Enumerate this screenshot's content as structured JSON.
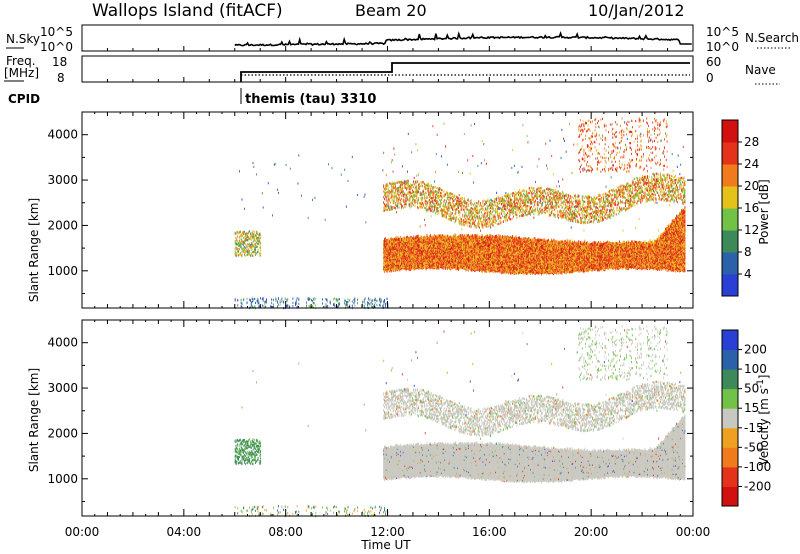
{
  "header": {
    "station": "Wallops Island (fitACF)",
    "beam": "Beam 20",
    "date": "10/Jan/2012"
  },
  "panels": {
    "nsky": {
      "left_label": "N.Sky",
      "left_ticks": [
        "10^5",
        "10^0"
      ],
      "right_ticks": [
        "10^5",
        "10^0"
      ],
      "right_label": "N.Search"
    },
    "freq": {
      "left_label": "Freq.",
      "left_unit": "[MHz]",
      "left_ticks": [
        "18",
        "8"
      ],
      "right_ticks": [
        "60",
        "0"
      ],
      "right_label": "Nave"
    },
    "cpid": {
      "label": "CPID",
      "program": "themis (tau) 3310"
    }
  },
  "colors": {
    "power_scale": [
      "#2a3fd6",
      "#2a61a8",
      "#3c8a5a",
      "#72c247",
      "#e5c21a",
      "#f07b1c",
      "#e5321a",
      "#d21010"
    ],
    "velocity_scale": [
      "#2a3fd6",
      "#2a61a8",
      "#3c8a5a",
      "#72c247",
      "#c8c8c0",
      "#f0a020",
      "#f07b1c",
      "#e5321a",
      "#d21010"
    ],
    "ground_scatter": "#c8c8c0"
  },
  "chart_data": [
    {
      "type": "heatmap",
      "title": "",
      "xlabel": "Time UT",
      "ylabel": "Slant Range [km]",
      "xlim": [
        "00:00",
        "24:00"
      ],
      "ylim": [
        180,
        4500
      ],
      "x_ticks": [
        "00:00",
        "04:00",
        "08:00",
        "12:00",
        "16:00",
        "20:00",
        "00:00"
      ],
      "y_ticks": [
        "1000",
        "2000",
        "3000",
        "4000"
      ],
      "colorbar": {
        "label": "Power [dB]",
        "range": [
          0,
          32
        ],
        "ticks": [
          "4",
          "8",
          "12",
          "16",
          "20",
          "24",
          "28"
        ]
      },
      "features": [
        {
          "desc": "echo patch",
          "t": [
            6.0,
            7.0
          ],
          "range_km": [
            1350,
            1900
          ],
          "dB": 18
        },
        {
          "desc": "sparse echoes",
          "t": [
            6.0,
            12.0
          ],
          "range_km": [
            180,
            400
          ],
          "dB": 6
        },
        {
          "desc": "main band",
          "t": [
            11.8,
            23.5
          ],
          "range_km": [
            1000,
            1750
          ],
          "dB": 28
        },
        {
          "desc": "upper band",
          "t": [
            11.9,
            23.0
          ],
          "range_km": [
            2200,
            3200
          ],
          "dB": 22
        },
        {
          "desc": "high echoes",
          "t": [
            19.5,
            23.0
          ],
          "range_km": [
            3200,
            4400
          ],
          "dB": 24
        }
      ]
    },
    {
      "type": "heatmap",
      "title": "",
      "xlabel": "Time UT",
      "ylabel": "Slant Range [km]",
      "xlim": [
        "00:00",
        "24:00"
      ],
      "ylim": [
        180,
        4500
      ],
      "x_ticks": [
        "00:00",
        "04:00",
        "08:00",
        "12:00",
        "16:00",
        "20:00",
        "00:00"
      ],
      "y_ticks": [
        "1000",
        "2000",
        "3000",
        "4000"
      ],
      "colorbar": {
        "label": "Velocity [m s^-1]",
        "ticks": [
          "200",
          "100",
          "50",
          "15",
          "-15",
          "-50",
          "-100",
          "-200"
        ]
      },
      "features": [
        {
          "desc": "echo patch",
          "t": [
            6.0,
            7.0
          ],
          "range_km": [
            1350,
            1900
          ],
          "vel": 60
        },
        {
          "desc": "ground scatter band",
          "t": [
            11.8,
            23.5
          ],
          "range_km": [
            1000,
            1750
          ],
          "vel": 0
        },
        {
          "desc": "upper ground scatter",
          "t": [
            11.9,
            23.0
          ],
          "range_km": [
            2200,
            3200
          ],
          "vel": 0
        }
      ]
    }
  ]
}
